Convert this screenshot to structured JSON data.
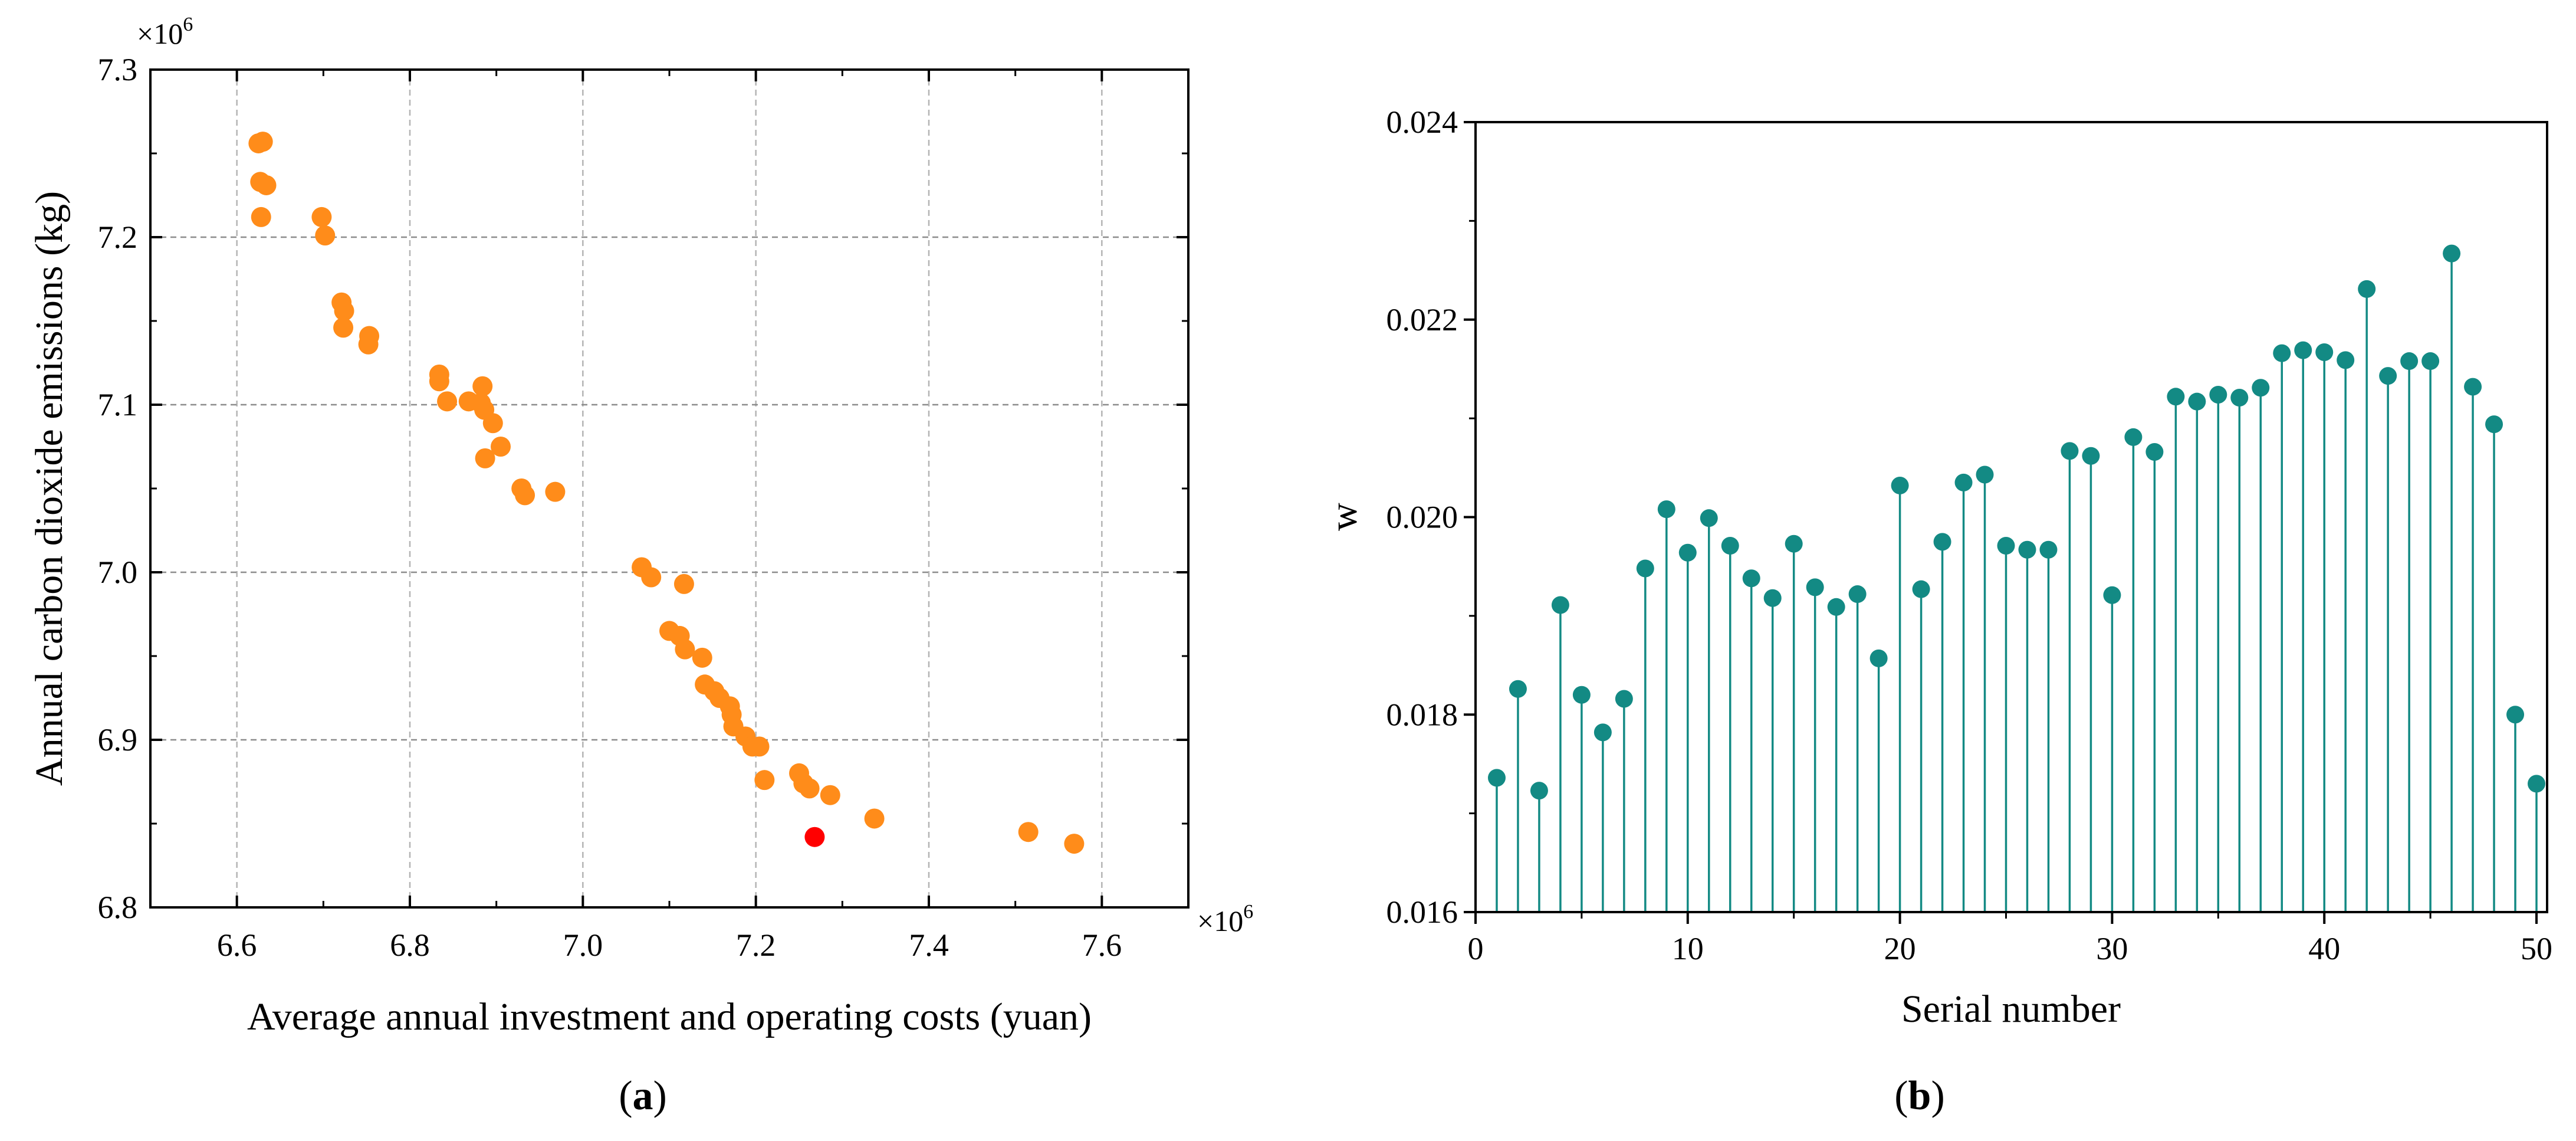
{
  "chart_data": [
    {
      "type": "scatter",
      "title": "",
      "xlabel": "Average annual investment and operating costs (yuan)",
      "ylabel": "Annual carbon dioxide emissions (kg)",
      "x_multiplier": "×10",
      "y_multiplier": "×10",
      "multiplier_exp": "6",
      "xlim": [
        6.5,
        7.7
      ],
      "ylim": [
        6.8,
        7.3
      ],
      "xticks": [
        "6.6",
        "6.8",
        "7.0",
        "7.2",
        "7.4",
        "7.6"
      ],
      "yticks": [
        "6.8",
        "6.9",
        "7.0",
        "7.1",
        "7.2",
        "7.3"
      ],
      "grid": true,
      "series": [
        {
          "color": "#ff8c1a",
          "points": [
            [
              6.625,
              7.256
            ],
            [
              6.63,
              7.257
            ],
            [
              6.627,
              7.233
            ],
            [
              6.634,
              7.231
            ],
            [
              6.628,
              7.212
            ],
            [
              6.698,
              7.212
            ],
            [
              6.702,
              7.201
            ],
            [
              6.721,
              7.161
            ],
            [
              6.724,
              7.156
            ],
            [
              6.723,
              7.146
            ],
            [
              6.753,
              7.141
            ],
            [
              6.752,
              7.136
            ],
            [
              6.834,
              7.118
            ],
            [
              6.834,
              7.114
            ],
            [
              6.843,
              7.102
            ],
            [
              6.868,
              7.102
            ],
            [
              6.884,
              7.111
            ],
            [
              6.882,
              7.101
            ],
            [
              6.886,
              7.097
            ],
            [
              6.896,
              7.089
            ],
            [
              6.887,
              7.068
            ],
            [
              6.905,
              7.075
            ],
            [
              6.929,
              7.05
            ],
            [
              6.933,
              7.046
            ],
            [
              6.968,
              7.048
            ],
            [
              7.068,
              7.003
            ],
            [
              7.079,
              6.997
            ],
            [
              7.117,
              6.993
            ],
            [
              7.1,
              6.965
            ],
            [
              7.112,
              6.962
            ],
            [
              7.118,
              6.954
            ],
            [
              7.138,
              6.949
            ],
            [
              7.141,
              6.933
            ],
            [
              7.152,
              6.929
            ],
            [
              7.158,
              6.925
            ],
            [
              7.17,
              6.92
            ],
            [
              7.172,
              6.915
            ],
            [
              7.174,
              6.908
            ],
            [
              7.188,
              6.902
            ],
            [
              7.196,
              6.896
            ],
            [
              7.204,
              6.896
            ],
            [
              7.21,
              6.876
            ],
            [
              7.25,
              6.88
            ],
            [
              7.255,
              6.874
            ],
            [
              7.262,
              6.871
            ],
            [
              7.286,
              6.867
            ],
            [
              7.337,
              6.853
            ],
            [
              7.515,
              6.845
            ],
            [
              7.568,
              6.838
            ]
          ]
        },
        {
          "color": "#ff0000",
          "points": [
            [
              7.268,
              6.842
            ]
          ]
        }
      ],
      "caption": "(a)"
    },
    {
      "type": "stem",
      "title": "",
      "xlabel": "Serial number",
      "ylabel": "w",
      "xlim": [
        0,
        50.5
      ],
      "ylim": [
        0.016,
        0.024
      ],
      "xticks": [
        "0",
        "10",
        "20",
        "30",
        "40",
        "50"
      ],
      "yticks": [
        "0.016",
        "0.018",
        "0.020",
        "0.022",
        "0.024"
      ],
      "grid": false,
      "color": "#138a84",
      "x": [
        1,
        2,
        3,
        4,
        5,
        6,
        7,
        8,
        9,
        10,
        11,
        12,
        13,
        14,
        15,
        16,
        17,
        18,
        19,
        20,
        21,
        22,
        23,
        24,
        25,
        26,
        27,
        28,
        29,
        30,
        31,
        32,
        33,
        34,
        35,
        36,
        37,
        38,
        39,
        40,
        41,
        42,
        43,
        44,
        45,
        46,
        47,
        48,
        49,
        50
      ],
      "values": [
        0.01736,
        0.01826,
        0.01723,
        0.01911,
        0.0182,
        0.01782,
        0.01816,
        0.01948,
        0.02008,
        0.01964,
        0.01999,
        0.01971,
        0.01938,
        0.01918,
        0.01973,
        0.01929,
        0.01909,
        0.01922,
        0.01857,
        0.02032,
        0.01927,
        0.01975,
        0.02035,
        0.02043,
        0.01971,
        0.01967,
        0.01967,
        0.02067,
        0.02062,
        0.01921,
        0.02081,
        0.02066,
        0.02122,
        0.02117,
        0.02124,
        0.02121,
        0.02131,
        0.02166,
        0.02169,
        0.02167,
        0.02159,
        0.02231,
        0.02143,
        0.02158,
        0.02158,
        0.02267,
        0.02132,
        0.02094,
        0.018,
        0.0173
      ],
      "caption": "(b)"
    }
  ]
}
